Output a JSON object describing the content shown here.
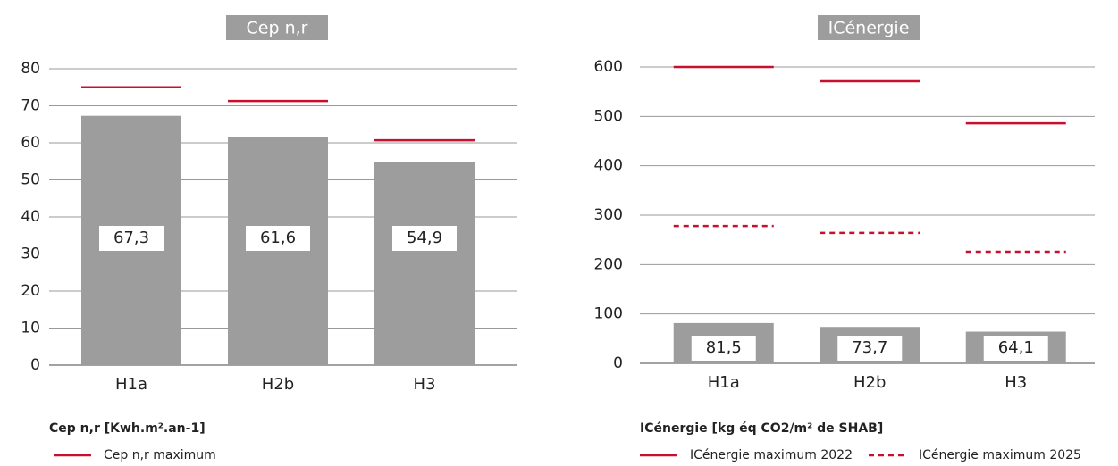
{
  "chart_data": [
    {
      "type": "bar",
      "title": "Cep n,r",
      "categories": [
        "H1a",
        "H2b",
        "H3"
      ],
      "values": [
        67.3,
        61.6,
        54.9
      ],
      "value_labels": [
        "67,3",
        "61,6",
        "54,9"
      ],
      "color": "#9d9d9d",
      "ylim": [
        0,
        80
      ],
      "yticks": [
        0,
        10,
        20,
        30,
        40,
        50,
        60,
        70,
        80
      ],
      "grid": true,
      "axis_label": "Cep n,r [Kwh.m².an-1]",
      "reference_lines": [
        {
          "name": "Cep n,r maximum",
          "color": "#c8102e",
          "style": "solid",
          "values": [
            75,
            71.3,
            60.7
          ]
        }
      ],
      "legend": "bottom"
    },
    {
      "type": "bar",
      "title": "ICénergie",
      "categories": [
        "H1a",
        "H2b",
        "H3"
      ],
      "values": [
        81.5,
        73.7,
        64.1
      ],
      "value_labels": [
        "81,5",
        "73,7",
        "64,1"
      ],
      "color": "#9d9d9d",
      "ylim": [
        0,
        600
      ],
      "yticks": [
        0,
        100,
        200,
        300,
        400,
        500,
        600
      ],
      "grid": true,
      "axis_label": "ICénergie [kg éq CO2/m² de SHAB]",
      "reference_lines": [
        {
          "name": "ICénergie maximum 2022",
          "color": "#c8102e",
          "style": "solid",
          "values": [
            600,
            571,
            486
          ]
        },
        {
          "name": "ICénergie maximum 2025",
          "color": "#c8102e",
          "style": "dashed",
          "values": [
            278,
            264,
            226
          ]
        }
      ],
      "legend": "bottom"
    }
  ]
}
